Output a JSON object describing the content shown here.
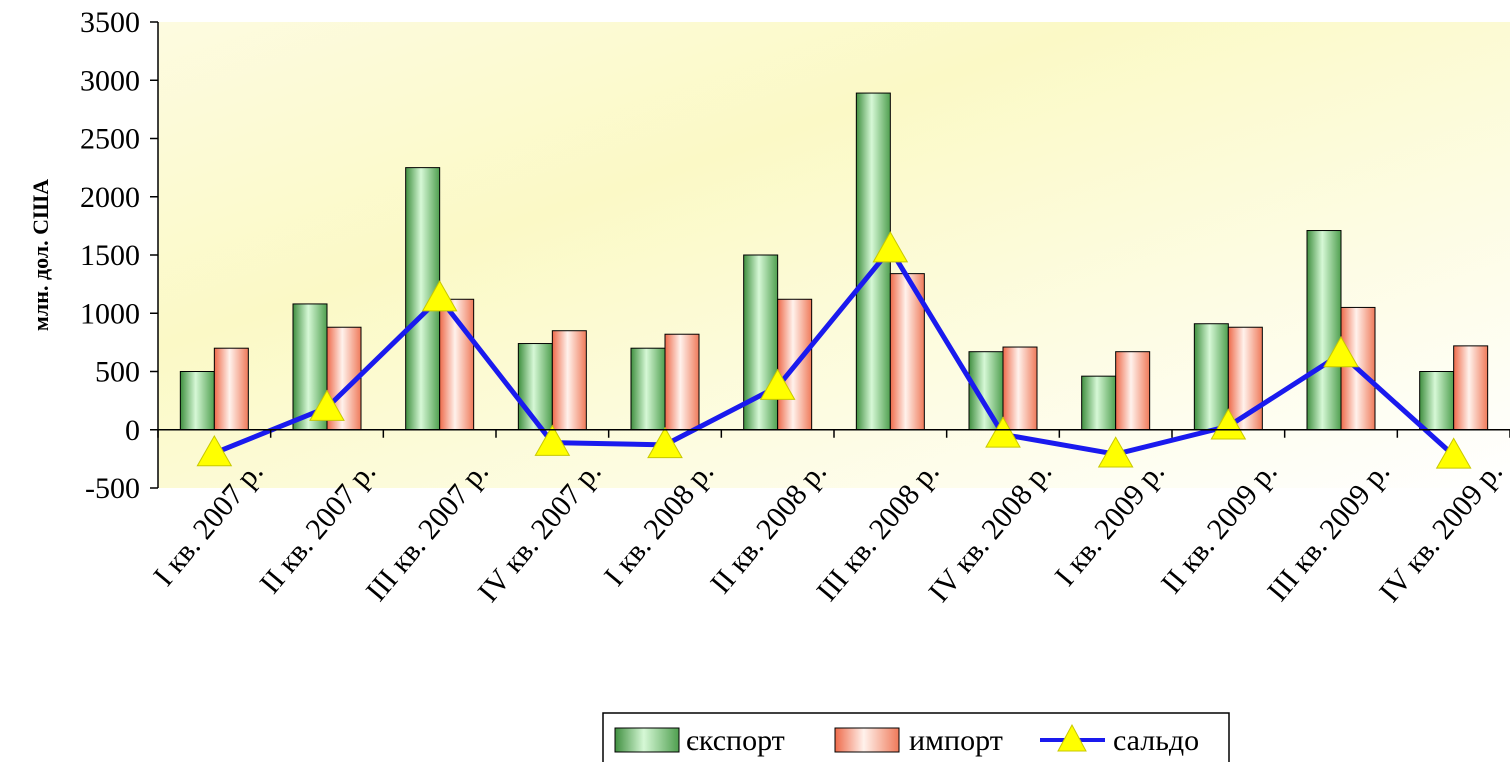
{
  "chart_data": {
    "type": "bar",
    "categories": [
      "I кв. 2007 р.",
      "II кв. 2007 р.",
      "III кв. 2007 р.",
      "IV кв. 2007 р.",
      "I кв. 2008 р.",
      "II кв. 2008 р.",
      "III кв. 2008 р.",
      "IV кв. 2008 р.",
      "I кв. 2009 р.",
      "II кв. 2009 р.",
      "III кв. 2009 р.",
      "IV кв. 2009 р."
    ],
    "series": [
      {
        "name": "єкспорт",
        "kind": "bar",
        "color": "#2e7d32",
        "values": [
          500,
          1080,
          2250,
          740,
          700,
          1500,
          2890,
          670,
          460,
          910,
          1710,
          500
        ]
      },
      {
        "name": "импорт",
        "kind": "bar",
        "color": "#e05a3a",
        "values": [
          700,
          880,
          1120,
          850,
          820,
          1120,
          1340,
          710,
          670,
          880,
          1050,
          720
        ]
      },
      {
        "name": "сальдо",
        "kind": "line",
        "color": "#1a1aee",
        "marker_color": "#ffff00",
        "values": [
          -200,
          190,
          1130,
          -110,
          -130,
          370,
          1550,
          -40,
          -210,
          30,
          650,
          -220
        ]
      }
    ],
    "ylabel": "млн. дол. США",
    "xlabel": "",
    "ylim": [
      -500,
      3500
    ],
    "yticks": [
      -500,
      0,
      500,
      1000,
      1500,
      2000,
      2500,
      3000,
      3500
    ],
    "legend_position": "bottom-center"
  }
}
